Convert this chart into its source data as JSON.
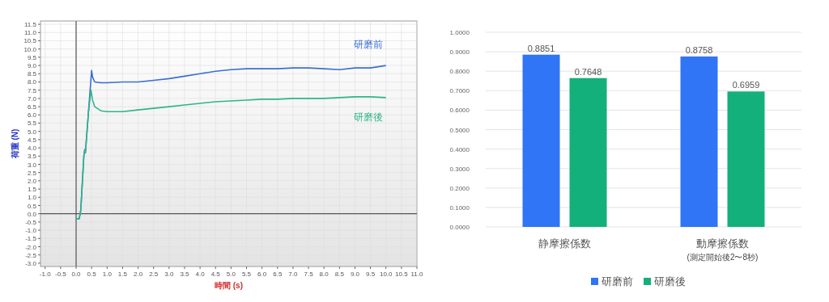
{
  "chart_data": [
    {
      "type": "line",
      "xlabel": "時間 (s)",
      "ylabel": "荷重 (N)",
      "grid": true,
      "legend": false,
      "marker": "none",
      "line_style": "solid",
      "xlim": [
        -1.15,
        11.0
      ],
      "ylim": [
        -3.2,
        11.7
      ],
      "xticks": [
        {
          "value": -1,
          "label": "-1.0"
        },
        {
          "value": -0.5,
          "label": "-0.5"
        },
        {
          "value": 0,
          "label": "0.0"
        },
        {
          "value": 0.5,
          "label": "0.5"
        },
        {
          "value": 1,
          "label": "1.0"
        },
        {
          "value": 1.5,
          "label": "1.5"
        },
        {
          "value": 2,
          "label": "2.0"
        },
        {
          "value": 2.5,
          "label": "2.5"
        },
        {
          "value": 3,
          "label": "3.0"
        },
        {
          "value": 3.5,
          "label": "3.5"
        },
        {
          "value": 4,
          "label": "4.0"
        },
        {
          "value": 4.5,
          "label": "4.5"
        },
        {
          "value": 5,
          "label": "5.0"
        },
        {
          "value": 5.5,
          "label": "5.5"
        },
        {
          "value": 6,
          "label": "6.0"
        },
        {
          "value": 6.5,
          "label": "6.5"
        },
        {
          "value": 7,
          "label": "7.0"
        },
        {
          "value": 7.5,
          "label": "7.5"
        },
        {
          "value": 8,
          "label": "8.0"
        },
        {
          "value": 8.5,
          "label": "8.5"
        },
        {
          "value": 9,
          "label": "9.0"
        },
        {
          "value": 9.5,
          "label": "9.5"
        },
        {
          "value": 10,
          "label": "10.0"
        },
        {
          "value": 10.5,
          "label": "10.5"
        },
        {
          "value": 11,
          "label": "11.0"
        }
      ],
      "yticks": [
        {
          "value": -3,
          "label": "-3.0"
        },
        {
          "value": -2.5,
          "label": "-2.5"
        },
        {
          "value": -2,
          "label": "-2.0"
        },
        {
          "value": -1.5,
          "label": "-1.5"
        },
        {
          "value": -1,
          "label": "-1.0"
        },
        {
          "value": -0.5,
          "label": "-0.5"
        },
        {
          "value": 0,
          "label": "0.0"
        },
        {
          "value": 0.5,
          "label": "0.5"
        },
        {
          "value": 1,
          "label": "1.0"
        },
        {
          "value": 1.5,
          "label": "1.5"
        },
        {
          "value": 2,
          "label": "2.0"
        },
        {
          "value": 2.5,
          "label": "2.5"
        },
        {
          "value": 3,
          "label": "3.0"
        },
        {
          "value": 3.5,
          "label": "3.5"
        },
        {
          "value": 4,
          "label": "4.0"
        },
        {
          "value": 4.5,
          "label": "4.5"
        },
        {
          "value": 5,
          "label": "5.0"
        },
        {
          "value": 5.5,
          "label": "5.5"
        },
        {
          "value": 6,
          "label": "6.0"
        },
        {
          "value": 6.5,
          "label": "6.5"
        },
        {
          "value": 7,
          "label": "7.0"
        },
        {
          "value": 7.5,
          "label": "7.5"
        },
        {
          "value": 8,
          "label": "8.0"
        },
        {
          "value": 8.5,
          "label": "8.5"
        },
        {
          "value": 9,
          "label": "9.0"
        },
        {
          "value": 9.5,
          "label": "9.5"
        },
        {
          "value": 10,
          "label": "10.0"
        },
        {
          "value": 10.5,
          "label": "10.5"
        },
        {
          "value": 11,
          "label": "11.0"
        },
        {
          "value": 11.5,
          "label": "11.5"
        }
      ],
      "series": [
        {
          "name": "研磨前",
          "color": "#3a6fd0",
          "x": [
            0,
            0.1,
            0.15,
            0.25,
            0.28,
            0.3,
            0.4,
            0.5,
            0.53,
            0.6,
            0.8,
            1.0,
            1.5,
            2.0,
            2.5,
            3.0,
            3.5,
            4.0,
            4.5,
            5.0,
            5.5,
            6.0,
            6.5,
            7.0,
            7.5,
            8.0,
            8.5,
            9.0,
            9.5,
            10.0
          ],
          "values": [
            -0.3,
            -0.3,
            0.2,
            3.5,
            3.9,
            3.7,
            6.2,
            8.7,
            8.3,
            8.0,
            7.95,
            7.95,
            8.0,
            8.0,
            8.1,
            8.2,
            8.35,
            8.5,
            8.65,
            8.75,
            8.8,
            8.8,
            8.8,
            8.85,
            8.85,
            8.8,
            8.75,
            8.85,
            8.85,
            9.0
          ]
        },
        {
          "name": "研磨後",
          "color": "#2fb58a",
          "x": [
            0,
            0.1,
            0.15,
            0.25,
            0.28,
            0.3,
            0.4,
            0.48,
            0.53,
            0.6,
            0.8,
            1.0,
            1.5,
            2.0,
            2.5,
            3.0,
            3.5,
            4.0,
            4.5,
            5.0,
            5.5,
            6.0,
            6.5,
            7.0,
            7.5,
            8.0,
            8.5,
            9.0,
            9.5,
            10.0
          ],
          "values": [
            -0.3,
            -0.3,
            0.2,
            3.5,
            3.9,
            3.7,
            6.2,
            7.5,
            6.9,
            6.5,
            6.25,
            6.2,
            6.2,
            6.3,
            6.4,
            6.5,
            6.6,
            6.7,
            6.8,
            6.85,
            6.9,
            6.95,
            6.95,
            7.0,
            7.0,
            7.0,
            7.05,
            7.1,
            7.1,
            7.05
          ]
        }
      ]
    },
    {
      "type": "bar",
      "categories": [
        "静摩擦係数",
        "動摩擦係数"
      ],
      "annotations": [
        "(測定開始後2〜8秒)"
      ],
      "grid": "y",
      "legend": "bottom",
      "data_labels": true,
      "ylim": [
        0,
        1
      ],
      "yticks": [
        {
          "value": 0,
          "label": "0.0000"
        },
        {
          "value": 0.1,
          "label": "0.1000"
        },
        {
          "value": 0.2,
          "label": "0.2000"
        },
        {
          "value": 0.3,
          "label": "0.3000"
        },
        {
          "value": 0.4,
          "label": "0.4000"
        },
        {
          "value": 0.5,
          "label": "0.5000"
        },
        {
          "value": 0.6,
          "label": "0.6000"
        },
        {
          "value": 0.7,
          "label": "0.7000"
        },
        {
          "value": 0.8,
          "label": "0.8000"
        },
        {
          "value": 0.9,
          "label": "0.9000"
        },
        {
          "value": 1,
          "label": "1.0000"
        }
      ],
      "series": [
        {
          "name": "研磨前",
          "color": "#2f75f5",
          "values": [
            0.8851,
            0.8758
          ]
        },
        {
          "name": "研磨後",
          "color": "#13b07b",
          "values": [
            0.7648,
            0.6959
          ]
        }
      ]
    }
  ]
}
